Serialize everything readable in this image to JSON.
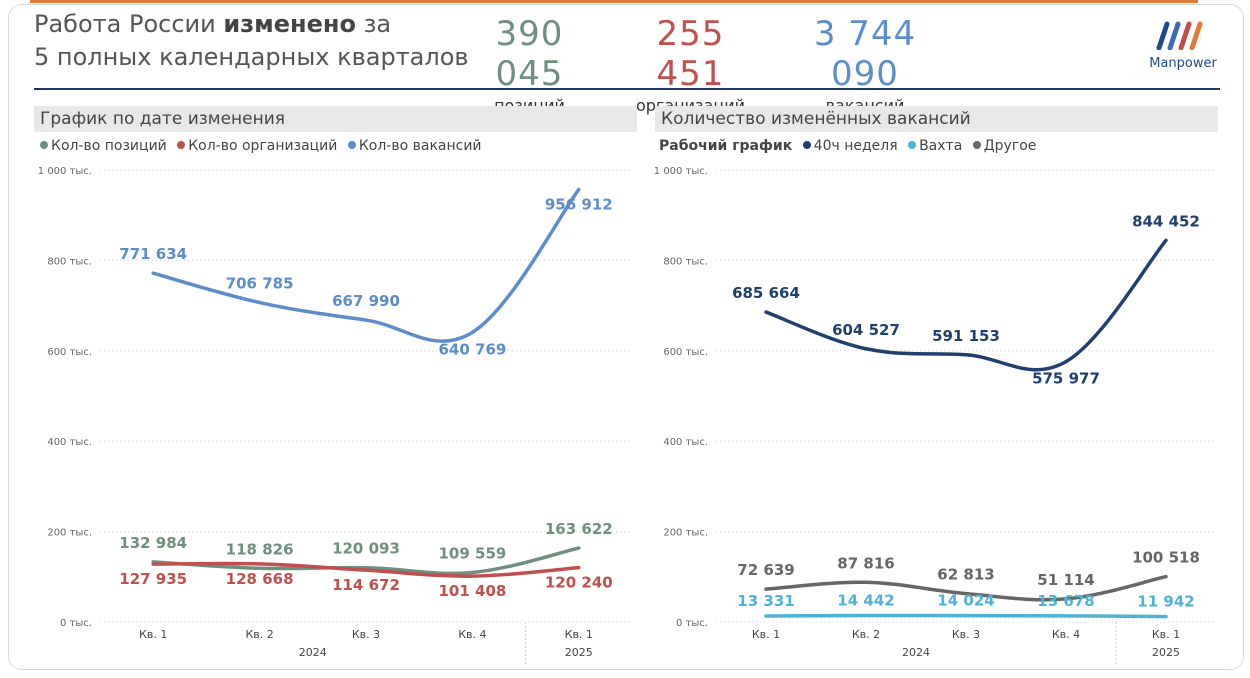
{
  "header": {
    "title_line1_pre": "Работа России ",
    "title_line1_bold": "изменено",
    "title_line1_post": " за",
    "title_line2": "5 полных календарных кварталов",
    "kpis": [
      {
        "value": "390 045",
        "label": "позиций",
        "color": "#6e8f7e"
      },
      {
        "value": "255 451",
        "label": "организаций",
        "color": "#c0504d"
      },
      {
        "value": "3 744 090",
        "label": "вакансий",
        "color": "#5b8dc9"
      }
    ],
    "logo_text": "Manpower"
  },
  "panels": [
    {
      "title": "График по дате изменения",
      "legend_title": "",
      "legend": [
        {
          "name": "Кол-во позиций",
          "color": "#6e8f7e"
        },
        {
          "name": "Кол-во организаций",
          "color": "#c0504d"
        },
        {
          "name": "Кол-во вакансий",
          "color": "#5b8dc9"
        }
      ]
    },
    {
      "title": "Количество изменённых вакансий",
      "legend_title": "Рабочий график",
      "legend": [
        {
          "name": "40ч неделя",
          "color": "#1f3f6e"
        },
        {
          "name": "Вахта",
          "color": "#4db3d4"
        },
        {
          "name": "Другое",
          "color": "#666666"
        }
      ]
    }
  ],
  "chart_data": [
    {
      "type": "line",
      "title": "График по дате изменения",
      "categories": [
        "Кв. 1",
        "Кв. 2",
        "Кв. 3",
        "Кв. 4",
        "Кв. 1"
      ],
      "year_groups": [
        {
          "label": "2024",
          "span": [
            0,
            3
          ]
        },
        {
          "label": "2025",
          "span": [
            4,
            4
          ]
        }
      ],
      "ylim": [
        0,
        1000000
      ],
      "yticks": [
        0,
        200000,
        400000,
        600000,
        800000,
        1000000
      ],
      "ytick_labels": [
        "0 тыс.",
        "200 тыс.",
        "400 тыс.",
        "600 тыс.",
        "800 тыс.",
        "1 000 тыс."
      ],
      "grid": true,
      "legend_position": "top-left",
      "series": [
        {
          "name": "Кол-во позиций",
          "color": "#6e8f7e",
          "values": [
            132984,
            118826,
            120093,
            109559,
            163622
          ],
          "labels": [
            "132 984",
            "118 826",
            "120 093",
            "109 559",
            "163 622"
          ],
          "label_pos": "above"
        },
        {
          "name": "Кол-во организаций",
          "color": "#c0504d",
          "values": [
            127935,
            128668,
            114672,
            101408,
            120240
          ],
          "labels": [
            "127 935",
            "128 668",
            "114 672",
            "101 408",
            "120 240"
          ],
          "label_pos": "below"
        },
        {
          "name": "Кол-во вакансий",
          "color": "#5b8dc9",
          "values": [
            771634,
            706785,
            667990,
            640769,
            956912
          ],
          "labels": [
            "771 634",
            "706 785",
            "667 990",
            "640 769",
            "956 912"
          ],
          "label_pos": "mixed"
        }
      ]
    },
    {
      "type": "line",
      "title": "Количество изменённых вакансий",
      "categories": [
        "Кв. 1",
        "Кв. 2",
        "Кв. 3",
        "Кв. 4",
        "Кв. 1"
      ],
      "year_groups": [
        {
          "label": "2024",
          "span": [
            0,
            3
          ]
        },
        {
          "label": "2025",
          "span": [
            4,
            4
          ]
        }
      ],
      "ylim": [
        0,
        1000000
      ],
      "yticks": [
        0,
        200000,
        400000,
        600000,
        800000,
        1000000
      ],
      "ytick_labels": [
        "0 тыс.",
        "200 тыс.",
        "400 тыс.",
        "600 тыс.",
        "800 тыс.",
        "1 000 тыс."
      ],
      "grid": true,
      "legend_position": "top-left",
      "series": [
        {
          "name": "40ч неделя",
          "color": "#1f3f6e",
          "values": [
            685664,
            604527,
            591153,
            575977,
            844452
          ],
          "labels": [
            "685 664",
            "604 527",
            "591 153",
            "575 977",
            "844 452"
          ],
          "label_pos": "mixed"
        },
        {
          "name": "Вахта",
          "color": "#4db3d4",
          "values": [
            13331,
            14442,
            14024,
            13678,
            11942
          ],
          "labels": [
            "13 331",
            "14 442",
            "14 024",
            "13 678",
            "11 942"
          ],
          "label_pos": "above"
        },
        {
          "name": "Другое",
          "color": "#666666",
          "values": [
            72639,
            87816,
            62813,
            51114,
            100518
          ],
          "labels": [
            "72 639",
            "87 816",
            "62 813",
            "51 114",
            "100 518"
          ],
          "label_pos": "above"
        }
      ]
    }
  ]
}
